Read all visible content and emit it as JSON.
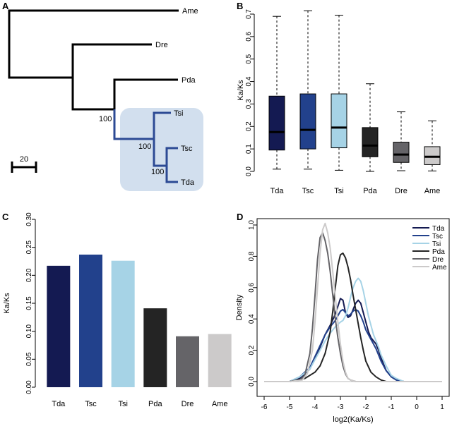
{
  "chart_data": [
    {
      "panel": "A",
      "type": "tree",
      "title": "",
      "taxa": [
        "Ame",
        "Dre",
        "Pda",
        "Tsi",
        "Tsc",
        "Tda"
      ],
      "bootstrap": [
        "100",
        "100",
        "100"
      ],
      "scale_bar_label": "20",
      "highlight_clade": [
        "Tsi",
        "Tsc",
        "Tda"
      ]
    },
    {
      "panel": "B",
      "type": "box",
      "categories": [
        "Tda",
        "Tsc",
        "Tsi",
        "Pda",
        "Dre",
        "Ame"
      ],
      "ylabel": "Ka/Ks",
      "ylim": [
        0,
        0.7
      ],
      "yticks": [
        "0.0",
        "0.1",
        "0.2",
        "0.3",
        "0.4",
        "0.5",
        "0.6",
        "0.7"
      ],
      "boxes": [
        {
          "name": "Tda",
          "min": 0.01,
          "q1": 0.095,
          "median": 0.175,
          "q3": 0.335,
          "max": 0.69,
          "color": "#141a52"
        },
        {
          "name": "Tsc",
          "min": 0.01,
          "q1": 0.1,
          "median": 0.185,
          "q3": 0.345,
          "max": 0.715,
          "color": "#22418c"
        },
        {
          "name": "Tsi",
          "min": 0.005,
          "q1": 0.105,
          "median": 0.195,
          "q3": 0.345,
          "max": 0.695,
          "color": "#a6d3e6"
        },
        {
          "name": "Pda",
          "min": 0.0,
          "q1": 0.065,
          "median": 0.115,
          "q3": 0.195,
          "max": 0.39,
          "color": "#242424"
        },
        {
          "name": "Dre",
          "min": 0.003,
          "q1": 0.04,
          "median": 0.075,
          "q3": 0.13,
          "max": 0.265,
          "color": "#656468"
        },
        {
          "name": "Ame",
          "min": 0.002,
          "q1": 0.03,
          "median": 0.065,
          "q3": 0.11,
          "max": 0.225,
          "color": "#cccaca"
        }
      ]
    },
    {
      "panel": "C",
      "type": "bar",
      "categories": [
        "Tda",
        "Tsc",
        "Tsi",
        "Pda",
        "Dre",
        "Ame"
      ],
      "values": [
        0.217,
        0.237,
        0.226,
        0.141,
        0.091,
        0.095
      ],
      "colors": [
        "#141a52",
        "#22418c",
        "#a6d3e6",
        "#242424",
        "#656468",
        "#cccaca"
      ],
      "ylabel": "Ka/Ks",
      "ylim": [
        0,
        0.3
      ],
      "yticks": [
        "0.00",
        "0.05",
        "0.10",
        "0.15",
        "0.20",
        "0.25",
        "0.30"
      ]
    },
    {
      "panel": "D",
      "type": "line",
      "xlabel": "log2(Ka/Ks)",
      "ylabel": "Density",
      "xlim": [
        -6,
        1
      ],
      "ylim": [
        0,
        1.0
      ],
      "xticks": [
        "-6",
        "-5",
        "-4",
        "-3",
        "-2",
        "-1",
        "0",
        "1"
      ],
      "yticks": [
        "0.0",
        "0.2",
        "0.4",
        "0.6",
        "0.8",
        "1.0"
      ],
      "legend_position": "top-right",
      "series": [
        {
          "name": "Tda",
          "color": "#141a52",
          "x": [
            -6,
            -5,
            -4.6,
            -4.2,
            -4.0,
            -3.8,
            -3.6,
            -3.4,
            -3.2,
            -3.0,
            -2.9,
            -2.8,
            -2.7,
            -2.6,
            -2.5,
            -2.4,
            -2.3,
            -2.2,
            -2.1,
            -2.0,
            -1.9,
            -1.8,
            -1.7,
            -1.6,
            -1.5,
            -1.4,
            -1.2,
            -1.0,
            -0.8,
            -0.5,
            0,
            1
          ],
          "y": [
            0,
            0,
            0.02,
            0.08,
            0.15,
            0.22,
            0.3,
            0.36,
            0.43,
            0.53,
            0.52,
            0.44,
            0.41,
            0.42,
            0.46,
            0.5,
            0.52,
            0.5,
            0.44,
            0.38,
            0.32,
            0.28,
            0.26,
            0.24,
            0.2,
            0.15,
            0.07,
            0.03,
            0.01,
            0,
            0,
            0
          ]
        },
        {
          "name": "Tsc",
          "color": "#22418c",
          "x": [
            -6,
            -5,
            -4.6,
            -4.2,
            -4.0,
            -3.8,
            -3.6,
            -3.4,
            -3.2,
            -3.0,
            -2.9,
            -2.8,
            -2.7,
            -2.6,
            -2.5,
            -2.4,
            -2.3,
            -2.2,
            -2.1,
            -2.0,
            -1.9,
            -1.8,
            -1.7,
            -1.6,
            -1.5,
            -1.4,
            -1.2,
            -1.0,
            -0.8,
            -0.5,
            0,
            1
          ],
          "y": [
            0,
            0,
            0.03,
            0.09,
            0.16,
            0.23,
            0.3,
            0.35,
            0.39,
            0.45,
            0.46,
            0.44,
            0.42,
            0.43,
            0.45,
            0.46,
            0.45,
            0.42,
            0.38,
            0.33,
            0.3,
            0.27,
            0.24,
            0.21,
            0.17,
            0.13,
            0.07,
            0.03,
            0.01,
            0,
            0,
            0
          ]
        },
        {
          "name": "Tsi",
          "color": "#a6d3e6",
          "x": [
            -6,
            -5,
            -4.6,
            -4.2,
            -4.0,
            -3.8,
            -3.6,
            -3.4,
            -3.2,
            -3.0,
            -2.9,
            -2.8,
            -2.7,
            -2.6,
            -2.5,
            -2.4,
            -2.3,
            -2.2,
            -2.1,
            -2.0,
            -1.9,
            -1.8,
            -1.7,
            -1.6,
            -1.5,
            -1.4,
            -1.2,
            -1.0,
            -0.8,
            -0.5,
            0,
            1
          ],
          "y": [
            0,
            0,
            0.03,
            0.08,
            0.14,
            0.2,
            0.26,
            0.31,
            0.35,
            0.38,
            0.39,
            0.42,
            0.47,
            0.54,
            0.6,
            0.64,
            0.66,
            0.64,
            0.58,
            0.5,
            0.42,
            0.36,
            0.3,
            0.26,
            0.22,
            0.17,
            0.1,
            0.04,
            0.02,
            0,
            0,
            0
          ]
        },
        {
          "name": "Pda",
          "color": "#242424",
          "x": [
            -6,
            -5,
            -4.4,
            -4.0,
            -3.8,
            -3.6,
            -3.4,
            -3.3,
            -3.2,
            -3.1,
            -3.0,
            -2.9,
            -2.8,
            -2.7,
            -2.6,
            -2.5,
            -2.4,
            -2.3,
            -2.2,
            -2.1,
            -2.0,
            -1.8,
            -1.6,
            -1.4,
            -1.2,
            -1.0,
            0,
            1
          ],
          "y": [
            0,
            0,
            0.02,
            0.06,
            0.1,
            0.18,
            0.32,
            0.45,
            0.6,
            0.74,
            0.81,
            0.82,
            0.79,
            0.73,
            0.65,
            0.55,
            0.46,
            0.37,
            0.28,
            0.2,
            0.13,
            0.06,
            0.03,
            0.01,
            0,
            0,
            0,
            0
          ]
        },
        {
          "name": "Dre",
          "color": "#656468",
          "x": [
            -6,
            -5,
            -4.6,
            -4.4,
            -4.2,
            -4.1,
            -4.0,
            -3.9,
            -3.8,
            -3.7,
            -3.6,
            -3.5,
            -3.4,
            -3.3,
            -3.2,
            -3.1,
            -3.0,
            -2.9,
            -2.8,
            -2.7,
            -2.6,
            -2.4,
            -2.0,
            0,
            1
          ],
          "y": [
            0,
            0,
            0.01,
            0.04,
            0.18,
            0.34,
            0.55,
            0.78,
            0.92,
            0.95,
            0.9,
            0.82,
            0.7,
            0.55,
            0.4,
            0.28,
            0.18,
            0.1,
            0.05,
            0.02,
            0.01,
            0,
            0,
            0,
            0
          ]
        },
        {
          "name": "Ame",
          "color": "#cccaca",
          "x": [
            -6,
            -5,
            -4.5,
            -4.3,
            -4.1,
            -4.0,
            -3.9,
            -3.8,
            -3.7,
            -3.6,
            -3.5,
            -3.4,
            -3.3,
            -3.2,
            -3.1,
            -3.0,
            -2.9,
            -2.8,
            -2.7,
            -2.6,
            -2.4,
            -2.0,
            0,
            1
          ],
          "y": [
            0,
            0,
            0.01,
            0.05,
            0.2,
            0.38,
            0.6,
            0.82,
            0.97,
            1.01,
            0.95,
            0.85,
            0.7,
            0.54,
            0.38,
            0.24,
            0.13,
            0.06,
            0.02,
            0.01,
            0,
            0,
            0,
            0
          ]
        }
      ]
    }
  ]
}
